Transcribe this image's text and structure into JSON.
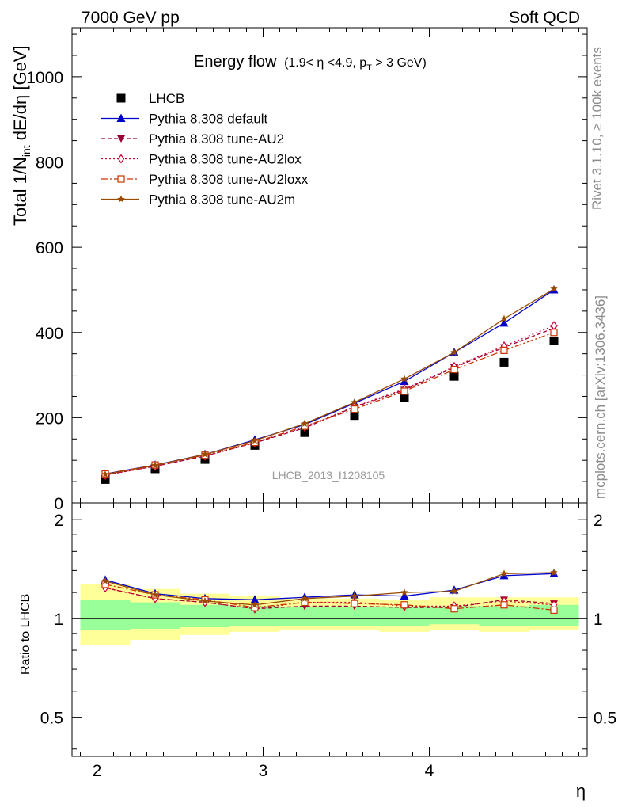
{
  "header": {
    "left": "7000 GeV pp",
    "right": "Soft QCD"
  },
  "side_labels": {
    "rivet": "Rivet 3.1.10, ≥ 100k events",
    "source": "mcplots.cern.ch [arXiv:1306.3436]"
  },
  "chart_data": [
    {
      "type": "line",
      "title": "Energy flow",
      "subtitle": "(1.9< η <4.9, p",
      "subtitle_sub": "T",
      "subtitle_end": " > 3 GeV)",
      "ylabel": "Total 1/N",
      "ylabel_sub": "int",
      "ylabel_end": " dE/dη [GeV]",
      "watermark": "LHCB_2013_I1208105",
      "xlim": [
        1.85,
        4.95
      ],
      "ylim": [
        0,
        1115
      ],
      "y_ticks": [
        "0",
        "200",
        "400",
        "600",
        "800",
        "1000"
      ],
      "x": [
        2.05,
        2.35,
        2.65,
        2.95,
        3.25,
        3.55,
        3.85,
        4.15,
        4.45,
        4.75
      ],
      "series": [
        {
          "name": "LHCB",
          "marker": "square",
          "color": "#000000",
          "dash": "none",
          "values": [
            55,
            80,
            102,
            135,
            165,
            205,
            247,
            297,
            330,
            380
          ]
        },
        {
          "name": "Pythia 8.308 default",
          "marker": "triangle-up",
          "color": "#0000cc",
          "dash": "none",
          "values": [
            68,
            89,
            114,
            148,
            184,
            234,
            285,
            353,
            422,
            500
          ]
        },
        {
          "name": "Pythia 8.308 tune-AU2",
          "marker": "triangle-down",
          "color": "#990033",
          "dash": "5,3",
          "values": [
            66,
            86,
            110,
            141,
            176,
            225,
            265,
            318,
            365,
            410
          ]
        },
        {
          "name": "Pythia 8.308 tune-AU2lox",
          "marker": "diamond",
          "color": "#cc0033",
          "dash": "2,3",
          "values": [
            65,
            86,
            110,
            141,
            178,
            226,
            267,
            320,
            368,
            416
          ]
        },
        {
          "name": "Pythia 8.308 tune-AU2loxx",
          "marker": "square-open",
          "color": "#cc3300",
          "dash": "8,3,2,3",
          "values": [
            68,
            89,
            112,
            142,
            180,
            220,
            262,
            313,
            358,
            400
          ]
        },
        {
          "name": "Pythia 8.308 tune-AU2m",
          "marker": "star",
          "color": "#994c00",
          "dash": "none",
          "values": [
            67,
            88,
            114,
            146,
            186,
            236,
            291,
            353,
            432,
            502
          ]
        }
      ]
    },
    {
      "type": "line",
      "ylabel": "Ratio to LHCB",
      "xlabel": "η",
      "xlim": [
        1.85,
        4.95
      ],
      "ylim": [
        0.38,
        2.25
      ],
      "log_y": true,
      "x_ticks": [
        "2",
        "3",
        "4"
      ],
      "y_ticks": [
        "0.5",
        "1",
        "2"
      ],
      "bands": {
        "edges": [
          1.9,
          2.2,
          2.5,
          2.8,
          3.1,
          3.4,
          3.7,
          4.0,
          4.3,
          4.6,
          4.9
        ],
        "yellow": [
          [
            0.83,
            1.27
          ],
          [
            0.86,
            1.23
          ],
          [
            0.89,
            1.19
          ],
          [
            0.91,
            1.17
          ],
          [
            0.92,
            1.15
          ],
          [
            0.92,
            1.15
          ],
          [
            0.91,
            1.14
          ],
          [
            0.92,
            1.16
          ],
          [
            0.91,
            1.16
          ],
          [
            0.92,
            1.16
          ]
        ],
        "green": [
          [
            0.92,
            1.14
          ],
          [
            0.93,
            1.12
          ],
          [
            0.94,
            1.1
          ],
          [
            0.95,
            1.09
          ],
          [
            0.95,
            1.08
          ],
          [
            0.95,
            1.08
          ],
          [
            0.95,
            1.08
          ],
          [
            0.96,
            1.09
          ],
          [
            0.95,
            1.09
          ],
          [
            0.95,
            1.1
          ]
        ]
      },
      "series": [
        {
          "name": "Pythia 8.308 default",
          "values": [
            1.31,
            1.19,
            1.15,
            1.14,
            1.16,
            1.18,
            1.17,
            1.22,
            1.35,
            1.37
          ]
        },
        {
          "name": "Pythia 8.308 tune-AU2",
          "values": [
            1.24,
            1.15,
            1.12,
            1.07,
            1.09,
            1.09,
            1.08,
            1.08,
            1.14,
            1.11
          ]
        },
        {
          "name": "Pythia 8.308 tune-AU2lox",
          "values": [
            1.24,
            1.15,
            1.12,
            1.07,
            1.12,
            1.12,
            1.09,
            1.09,
            1.13,
            1.1
          ]
        },
        {
          "name": "Pythia 8.308 tune-AU2loxx",
          "values": [
            1.27,
            1.18,
            1.14,
            1.08,
            1.12,
            1.11,
            1.1,
            1.07,
            1.1,
            1.06
          ]
        },
        {
          "name": "Pythia 8.308 tune-AU2m",
          "values": [
            1.3,
            1.18,
            1.13,
            1.1,
            1.15,
            1.17,
            1.2,
            1.21,
            1.37,
            1.38
          ]
        }
      ]
    }
  ]
}
